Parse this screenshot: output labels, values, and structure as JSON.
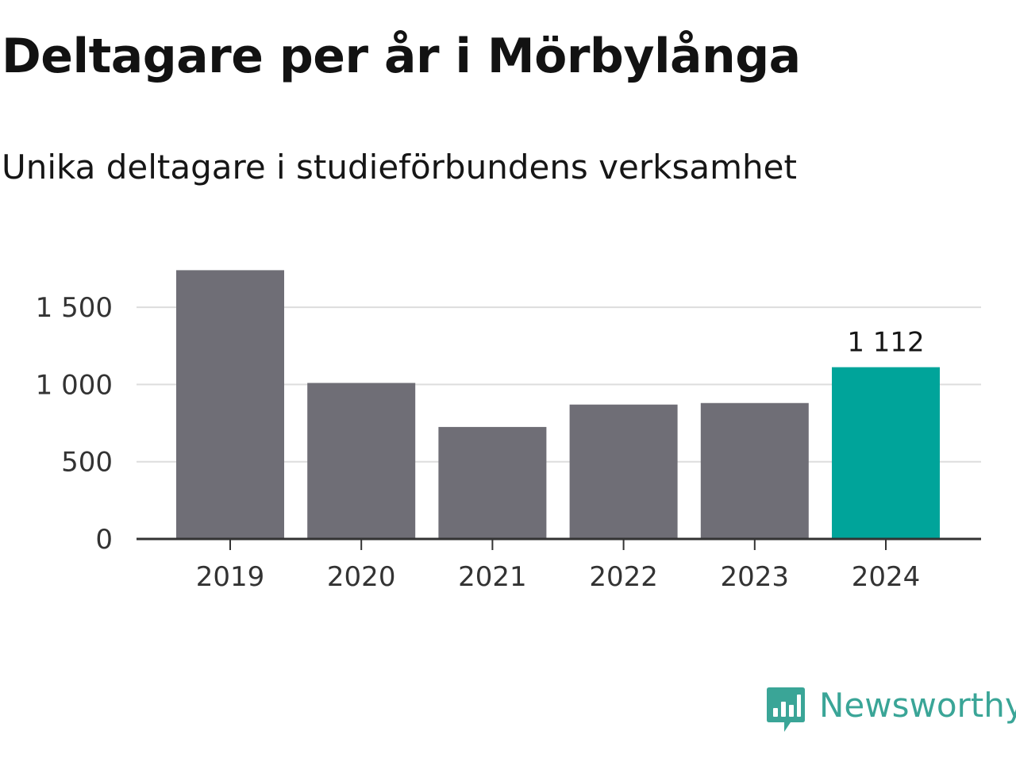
{
  "header": {
    "title": "Deltagare per år i Mörbylånga",
    "subtitle": "Unika deltagare i studieförbundens verksamhet"
  },
  "chart_data": {
    "type": "bar",
    "title": "Deltagare per år i Mörbylånga",
    "subtitle": "Unika deltagare i studieförbundens verksamhet",
    "xlabel": "",
    "ylabel": "",
    "categories": [
      "2019",
      "2020",
      "2021",
      "2022",
      "2023",
      "2024"
    ],
    "values": [
      1740,
      1010,
      725,
      870,
      880,
      1112
    ],
    "ylim": [
      0,
      1800
    ],
    "yticks": [
      0,
      500,
      1000,
      1500
    ],
    "ytick_labels": [
      "0",
      "500",
      "1 000",
      "1 500"
    ],
    "grid": true,
    "legend": "none",
    "highlight_index": 5,
    "highlight_label": "1 112",
    "colors": {
      "bar": "#6f6e76",
      "highlight": "#00a49a",
      "grid": "#dddddd",
      "axis": "#333333"
    }
  },
  "brand": {
    "name": "Newsworthy",
    "icon": "newsworthy-logo-icon",
    "color": "#3aa597"
  }
}
